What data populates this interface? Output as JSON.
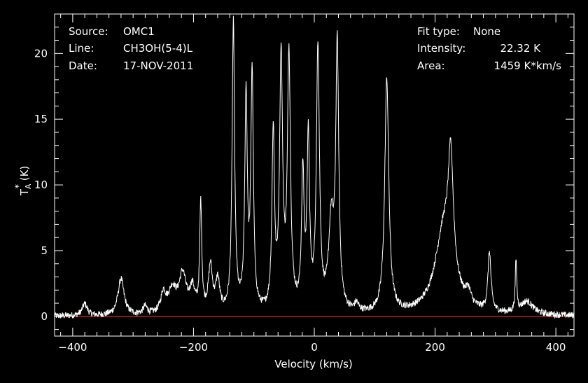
{
  "header_left": [
    {
      "key": "Source:",
      "value": "OMC1"
    },
    {
      "key": "Line:",
      "value": "CH3OH(5-4)L"
    },
    {
      "key": "Date:",
      "value": "17-NOV-2011"
    }
  ],
  "header_right": [
    {
      "key": "Fit type:",
      "value": "None"
    },
    {
      "key": "Intensity:",
      "value": "22.32 K"
    },
    {
      "key": "Area:",
      "value": "1459 K*km/s"
    }
  ],
  "chart_data": {
    "type": "line",
    "xlabel": "Velocity (km/s)",
    "ylabel_main": "T",
    "ylabel_sup": "*",
    "ylabel_sub": "A",
    "ylabel_unit": " (K)",
    "xlim": [
      -430,
      430
    ],
    "ylim": [
      -1.5,
      23.0
    ],
    "x_ticks": [
      -400,
      -200,
      0,
      200,
      400
    ],
    "x_tick_labels": [
      "−400",
      "−200",
      "0",
      "200",
      "400"
    ],
    "y_ticks": [
      0,
      5,
      10,
      15,
      20
    ],
    "y_tick_labels": [
      "0",
      "5",
      "10",
      "15",
      "20"
    ],
    "baseline": 0,
    "colors": {
      "spectrum": "#ffffff",
      "baseline": "#ff2020",
      "axes": "#ffffff",
      "background": "#000000"
    },
    "peaks": [
      {
        "center": -380,
        "amplitude": 0.9,
        "width": 5
      },
      {
        "center": -320,
        "amplitude": 2.8,
        "width": 6
      },
      {
        "center": -280,
        "amplitude": 0.6,
        "width": 4
      },
      {
        "center": -250,
        "amplitude": 1.5,
        "width": 5
      },
      {
        "center": -235,
        "amplitude": 1.8,
        "width": 8
      },
      {
        "center": -218,
        "amplitude": 2.9,
        "width": 7
      },
      {
        "center": -202,
        "amplitude": 1.8,
        "width": 5
      },
      {
        "center": -188,
        "amplitude": 8.3,
        "width": 2
      },
      {
        "center": -172,
        "amplitude": 3.5,
        "width": 4
      },
      {
        "center": -160,
        "amplitude": 2.4,
        "width": 4
      },
      {
        "center": -134,
        "amplitude": 22.0,
        "width": 2.5
      },
      {
        "center": -113,
        "amplitude": 16.2,
        "width": 2.5
      },
      {
        "center": -103,
        "amplitude": 18.0,
        "width": 2.5
      },
      {
        "center": -68,
        "amplitude": 13.4,
        "width": 2.5
      },
      {
        "center": -55,
        "amplitude": 19.0,
        "width": 3
      },
      {
        "center": -42,
        "amplitude": 19.2,
        "width": 3
      },
      {
        "center": -19,
        "amplitude": 10.2,
        "width": 2.5
      },
      {
        "center": -10,
        "amplitude": 12.8,
        "width": 2.5
      },
      {
        "center": 6,
        "amplitude": 20.0,
        "width": 3
      },
      {
        "center": 28,
        "amplitude": 6.5,
        "width": 5
      },
      {
        "center": 38,
        "amplitude": 19.8,
        "width": 3
      },
      {
        "center": 70,
        "amplitude": 0.6,
        "width": 4
      },
      {
        "center": 120,
        "amplitude": 17.8,
        "width": 4
      },
      {
        "center": 215,
        "amplitude": 6.5,
        "width": 18
      },
      {
        "center": 226,
        "amplitude": 8.6,
        "width": 5
      },
      {
        "center": 255,
        "amplitude": 1.0,
        "width": 5
      },
      {
        "center": 290,
        "amplitude": 4.5,
        "width": 3
      },
      {
        "center": 334,
        "amplitude": 3.9,
        "width": 1.5
      },
      {
        "center": 352,
        "amplitude": 1.0,
        "width": 12
      }
    ]
  }
}
